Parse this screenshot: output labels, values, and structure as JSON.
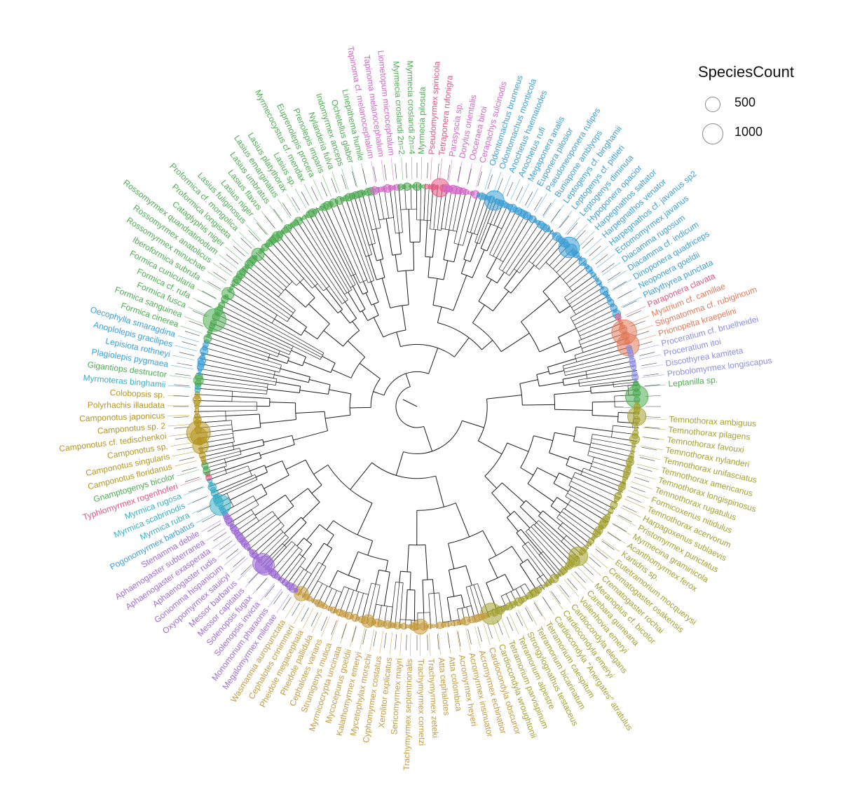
{
  "legend": {
    "title": "SpeciesCount",
    "items": [
      {
        "label": "500",
        "value": 500
      },
      {
        "label": "1000",
        "value": 1000
      }
    ]
  },
  "colors": {
    "Ponerinae": "#3a9fd6",
    "Dorylinae": "#d466c9",
    "Pseudomyrmecinae": "#e2557f",
    "Dolichoderinae": "#4dac52",
    "Formicinae_green": "#4dac52",
    "Camponotini": "#b5951f",
    "Myrmicinae_purple": "#9d6bd6",
    "Myrmicinae_gold": "#c49a3c",
    "Myrmicinae_olive": "#a3a12e",
    "Amblyoponinae": "#e27a5a",
    "Proceratiinae": "#8b8ee0",
    "Leptanillinae": "#4dac52",
    "Cyan": "#3aaec4",
    "Branch": "#1a1a1a"
  },
  "tip_labels": [
    {
      "text": "Temnothorax ambiguus",
      "color": "#a3a12e"
    },
    {
      "text": "Temnothorax pilagens",
      "color": "#a3a12e"
    },
    {
      "text": "Temnothorax favouxi",
      "color": "#a3a12e"
    },
    {
      "text": "Temnothorax nylanderi",
      "color": "#a3a12e"
    },
    {
      "text": "Temnothorax unifasciatus",
      "color": "#a3a12e"
    },
    {
      "text": "Temnothorax americanus",
      "color": "#a3a12e"
    },
    {
      "text": "Temnothorax longispinosus",
      "color": "#a3a12e"
    },
    {
      "text": "Temnothorax rugatulus",
      "color": "#a3a12e"
    },
    {
      "text": "Formicoxenus nitidulus",
      "color": "#a3a12e"
    },
    {
      "text": "Temnothorax acervorum",
      "color": "#a3a12e"
    },
    {
      "text": "Harpagoxenus sublaevis",
      "color": "#a3a12e"
    },
    {
      "text": "Pristomyrmex punctatus",
      "color": "#a3a12e"
    },
    {
      "text": "Myrmecina graminicola",
      "color": "#a3a12e"
    },
    {
      "text": "Acanthomyrmex ferox",
      "color": "#a3a12e"
    },
    {
      "text": "Kartidris sp.",
      "color": "#a3a12e"
    },
    {
      "text": "Eutetramorium mocquerysi",
      "color": "#a3a12e"
    },
    {
      "text": "Crematogaster osakensis",
      "color": "#a3a12e"
    },
    {
      "text": "Crematogaster rochai",
      "color": "#a3a12e"
    },
    {
      "text": "Meranoplus cf. bicolor",
      "color": "#a3a12e"
    },
    {
      "text": "Carebara guineana",
      "color": "#a3a12e"
    },
    {
      "text": "Vollenhovia emeryi",
      "color": "#a3a12e"
    },
    {
      "text": "Cardiocondyla elegans",
      "color": "#a3a12e"
    },
    {
      "text": "Cardiocondyla emeryi",
      "color": "#a3a12e"
    },
    {
      "text": "Cardiocondyla \"Anergates\" atratulus",
      "color": "#a3a12e"
    },
    {
      "text": "Tetramorium caespitum",
      "color": "#a3a12e"
    },
    {
      "text": "Tetramorium bicarinatum",
      "color": "#a3a12e"
    },
    {
      "text": "Strongylognathus testaceus",
      "color": "#a3a12e"
    },
    {
      "text": "Tetramorium alpestre",
      "color": "#a3a12e"
    },
    {
      "text": "Tetramorium parvispinum",
      "color": "#a3a12e"
    },
    {
      "text": "Cardiocondyla wroughtonii",
      "color": "#a3a12e"
    },
    {
      "text": "Cardiocondyla obscurior",
      "color": "#c49a3c"
    },
    {
      "text": "Acromyrmex echinatior",
      "color": "#c49a3c"
    },
    {
      "text": "Acromyrmex insinuator",
      "color": "#c49a3c"
    },
    {
      "text": "Acromyrmex heyeri",
      "color": "#c49a3c"
    },
    {
      "text": "Atta colombica",
      "color": "#c49a3c"
    },
    {
      "text": "Atta cephalotes",
      "color": "#c49a3c"
    },
    {
      "text": "Trachymyrmex zeteki",
      "color": "#c49a3c"
    },
    {
      "text": "Trachymyrmex cornetzi",
      "color": "#c49a3c"
    },
    {
      "text": "Trachymyrmex septentrionalis",
      "color": "#c49a3c"
    },
    {
      "text": "Sericomyrmex mayri",
      "color": "#c49a3c"
    },
    {
      "text": "Xerolitor explicatus",
      "color": "#c49a3c"
    },
    {
      "text": "Cyphomyrmex costatus",
      "color": "#c49a3c"
    },
    {
      "text": "Mycetophylax morschi",
      "color": "#c49a3c"
    },
    {
      "text": "Kalathomyrmex emeryi",
      "color": "#c49a3c"
    },
    {
      "text": "Mycocepurus goeldii",
      "color": "#c49a3c"
    },
    {
      "text": "Myrmicocrypta uncinata",
      "color": "#c49a3c"
    },
    {
      "text": "Strumigenys mutica",
      "color": "#c49a3c"
    },
    {
      "text": "Cephalotes varians",
      "color": "#c49a3c"
    },
    {
      "text": "Pheidole pallidula",
      "color": "#c49a3c"
    },
    {
      "text": "Pheidole megacephala",
      "color": "#c49a3c"
    },
    {
      "text": "Cephalotes crinimmeri",
      "color": "#c49a3c"
    },
    {
      "text": "Wasmannia auropunctata",
      "color": "#c49a3c"
    },
    {
      "text": "Megalomyrmex milenae",
      "color": "#9d6bd6"
    },
    {
      "text": "Monomorium pharaonis",
      "color": "#9d6bd6"
    },
    {
      "text": "Solenopsis invicta",
      "color": "#9d6bd6"
    },
    {
      "text": "Solenopsis fugax",
      "color": "#9d6bd6"
    },
    {
      "text": "Messor capitatus",
      "color": "#9d6bd6"
    },
    {
      "text": "Messor barbarus",
      "color": "#9d6bd6"
    },
    {
      "text": "Oxyopomyrmex sauicyi",
      "color": "#9d6bd6"
    },
    {
      "text": "Goniomma hispanicum",
      "color": "#9d6bd6"
    },
    {
      "text": "Aphaenogaster rudis",
      "color": "#9d6bd6"
    },
    {
      "text": "Aphaenogaster exasperata",
      "color": "#9d6bd6"
    },
    {
      "text": "Aphaenogaster subterranea",
      "color": "#9d6bd6"
    },
    {
      "text": "Stenamma debile",
      "color": "#9d6bd6"
    },
    {
      "text": "Pogonomyrmex barbatus",
      "color": "#3a9fd6"
    },
    {
      "text": "Myrmica rubra",
      "color": "#3aaec4"
    },
    {
      "text": "Myrmica scabrinodis",
      "color": "#3aaec4"
    },
    {
      "text": "Myrmica rugosa",
      "color": "#3aaec4"
    },
    {
      "text": "Typhlomyrmex rogenhoferi",
      "color": "#e2557f"
    },
    {
      "text": "Gnamptogenys bicolor",
      "color": "#4dac52"
    },
    {
      "text": "Camponotus floridanus",
      "color": "#b5951f"
    },
    {
      "text": "Camponotus singularis",
      "color": "#b5951f"
    },
    {
      "text": "Camponotus sp.",
      "color": "#b5951f"
    },
    {
      "text": "Camponotus cf. tedischenkoi",
      "color": "#b5951f"
    },
    {
      "text": "Camponotus sp. 2",
      "color": "#b5951f"
    },
    {
      "text": "Camponotus japonicus",
      "color": "#b5951f"
    },
    {
      "text": "Polyrhachis illaudata",
      "color": "#b5951f"
    },
    {
      "text": "Colobopsis sp.",
      "color": "#b5951f"
    },
    {
      "text": "Myrmoteras binghamii",
      "color": "#3aaec4"
    },
    {
      "text": "Gigantiops destructor",
      "color": "#4dac52"
    },
    {
      "text": "Plagiolepis pygmaea",
      "color": "#3a9fd6"
    },
    {
      "text": "Lepisiota rothneyi",
      "color": "#3a9fd6"
    },
    {
      "text": "Anoplolepis gracilipes",
      "color": "#3a9fd6"
    },
    {
      "text": "Oecophylla smaragdina",
      "color": "#3a9fd6"
    },
    {
      "text": "Formica cinerea",
      "color": "#4dac52"
    },
    {
      "text": "Formica sanguinea",
      "color": "#4dac52"
    },
    {
      "text": "Formica fusca",
      "color": "#4dac52"
    },
    {
      "text": "Formica cf. rufa",
      "color": "#4dac52"
    },
    {
      "text": "Formica cunicularia",
      "color": "#4dac52"
    },
    {
      "text": "Iberoformica subrufa",
      "color": "#4dac52"
    },
    {
      "text": "Rossomyrmex minuchae",
      "color": "#4dac52"
    },
    {
      "text": "Rossomyrmex anatolicus",
      "color": "#4dac52"
    },
    {
      "text": "Rossomyrmex quandratinodum",
      "color": "#4dac52"
    },
    {
      "text": "Cataglyphis niger",
      "color": "#4dac52"
    },
    {
      "text": "Proformica longiseta",
      "color": "#4dac52"
    },
    {
      "text": "Proformica cf. mongolica",
      "color": "#4dac52"
    },
    {
      "text": "Lasius fuliginosus",
      "color": "#4dac52"
    },
    {
      "text": "Lasius niger",
      "color": "#4dac52"
    },
    {
      "text": "Lasius flavus",
      "color": "#4dac52"
    },
    {
      "text": "Lasius umbratus",
      "color": "#4dac52"
    },
    {
      "text": "Lasius emarginatus",
      "color": "#4dac52"
    },
    {
      "text": "Lasius platythorax",
      "color": "#4dac52"
    },
    {
      "text": "Lasius sp.",
      "color": "#4dac52"
    },
    {
      "text": "Myrmecocystus cf. mendax",
      "color": "#4dac52"
    },
    {
      "text": "Euprenolepis procera",
      "color": "#4dac52"
    },
    {
      "text": "Prenolepis imparis",
      "color": "#4dac52"
    },
    {
      "text": "Nylanderia fulva",
      "color": "#4dac52"
    },
    {
      "text": "Indomyrmex anceps",
      "color": "#4dac52"
    },
    {
      "text": "Ochetellus glaber",
      "color": "#4dac52"
    },
    {
      "text": "Linepithema humile",
      "color": "#4dac52"
    },
    {
      "text": "Tapinoma cf. melanocephalum",
      "color": "#d466c9"
    },
    {
      "text": "Tapinoma melanocephalum",
      "color": "#d466c9"
    },
    {
      "text": "Liometopum microcephalum",
      "color": "#d466c9"
    },
    {
      "text": "Myrmecia croslandi 2n=2",
      "color": "#4dac52"
    },
    {
      "text": "Myrmecia croslandi 2n=4",
      "color": "#4dac52"
    },
    {
      "text": "Myrmecia pilosula",
      "color": "#4dac52"
    },
    {
      "text": "Pseudomyrmex spinicola",
      "color": "#e2557f"
    },
    {
      "text": "Tetraponera rufonigra",
      "color": "#e2557f"
    },
    {
      "text": "Parasyscia sp.",
      "color": "#d466c9"
    },
    {
      "text": "Dorylus orientalis",
      "color": "#d466c9"
    },
    {
      "text": "Ooceraea biroi",
      "color": "#d466c9"
    },
    {
      "text": "Cerapachys sulcinodis",
      "color": "#d466c9"
    },
    {
      "text": "Odontomachus brunneus",
      "color": "#3a9fd6"
    },
    {
      "text": "Odontomachus monticola",
      "color": "#3a9fd6"
    },
    {
      "text": "Anochetus haematodes",
      "color": "#3a9fd6"
    },
    {
      "text": "Anochetus rufi",
      "color": "#3a9fd6"
    },
    {
      "text": "Megaponera analis",
      "color": "#3a9fd6"
    },
    {
      "text": "Euponera pilosior",
      "color": "#3a9fd6"
    },
    {
      "text": "Pseudoneoponera rufipes",
      "color": "#3a9fd6"
    },
    {
      "text": "Buniapone amblyops",
      "color": "#3a9fd6"
    },
    {
      "text": "Leptogenys cf. binghamii",
      "color": "#3a9fd6"
    },
    {
      "text": "Leptogenys cf. pittieri",
      "color": "#3a9fd6"
    },
    {
      "text": "Leptogenys diminuta",
      "color": "#3a9fd6"
    },
    {
      "text": "Hypoponera opacior",
      "color": "#3a9fd6"
    },
    {
      "text": "Harpegnathos saltator",
      "color": "#3a9fd6"
    },
    {
      "text": "Harpegnathos venator",
      "color": "#3a9fd6"
    },
    {
      "text": "Harpegnathos cf. javanus sp2",
      "color": "#3a9fd6"
    },
    {
      "text": "Ectomomyrmex javanus",
      "color": "#3a9fd6"
    },
    {
      "text": "Diacamma rugosum",
      "color": "#3a9fd6"
    },
    {
      "text": "Diacamma cf. indicum",
      "color": "#3a9fd6"
    },
    {
      "text": "Dinoponera quadriceps",
      "color": "#3a9fd6"
    },
    {
      "text": "Neoponera goeldii",
      "color": "#3a9fd6"
    },
    {
      "text": "Platythyrea punctata",
      "color": "#3a9fd6"
    },
    {
      "text": "Paraponera clavata",
      "color": "#e2557f"
    },
    {
      "text": "Mystrium cf. camillae",
      "color": "#e27a5a"
    },
    {
      "text": "Stigmatomma cf. rubiginoum",
      "color": "#e27a5a"
    },
    {
      "text": "Prionopelta kraepelini",
      "color": "#e27a5a"
    },
    {
      "text": "Proceratium cf. bruelheidei",
      "color": "#8b8ee0"
    },
    {
      "text": "Proceratium itoi",
      "color": "#8b8ee0"
    },
    {
      "text": "Discothyrea kamiteta",
      "color": "#8b8ee0"
    },
    {
      "text": "Probolomyrmex longiscapus",
      "color": "#8b8ee0"
    },
    {
      "text": "Leptanilla sp.",
      "color": "#4dac52"
    }
  ]
}
